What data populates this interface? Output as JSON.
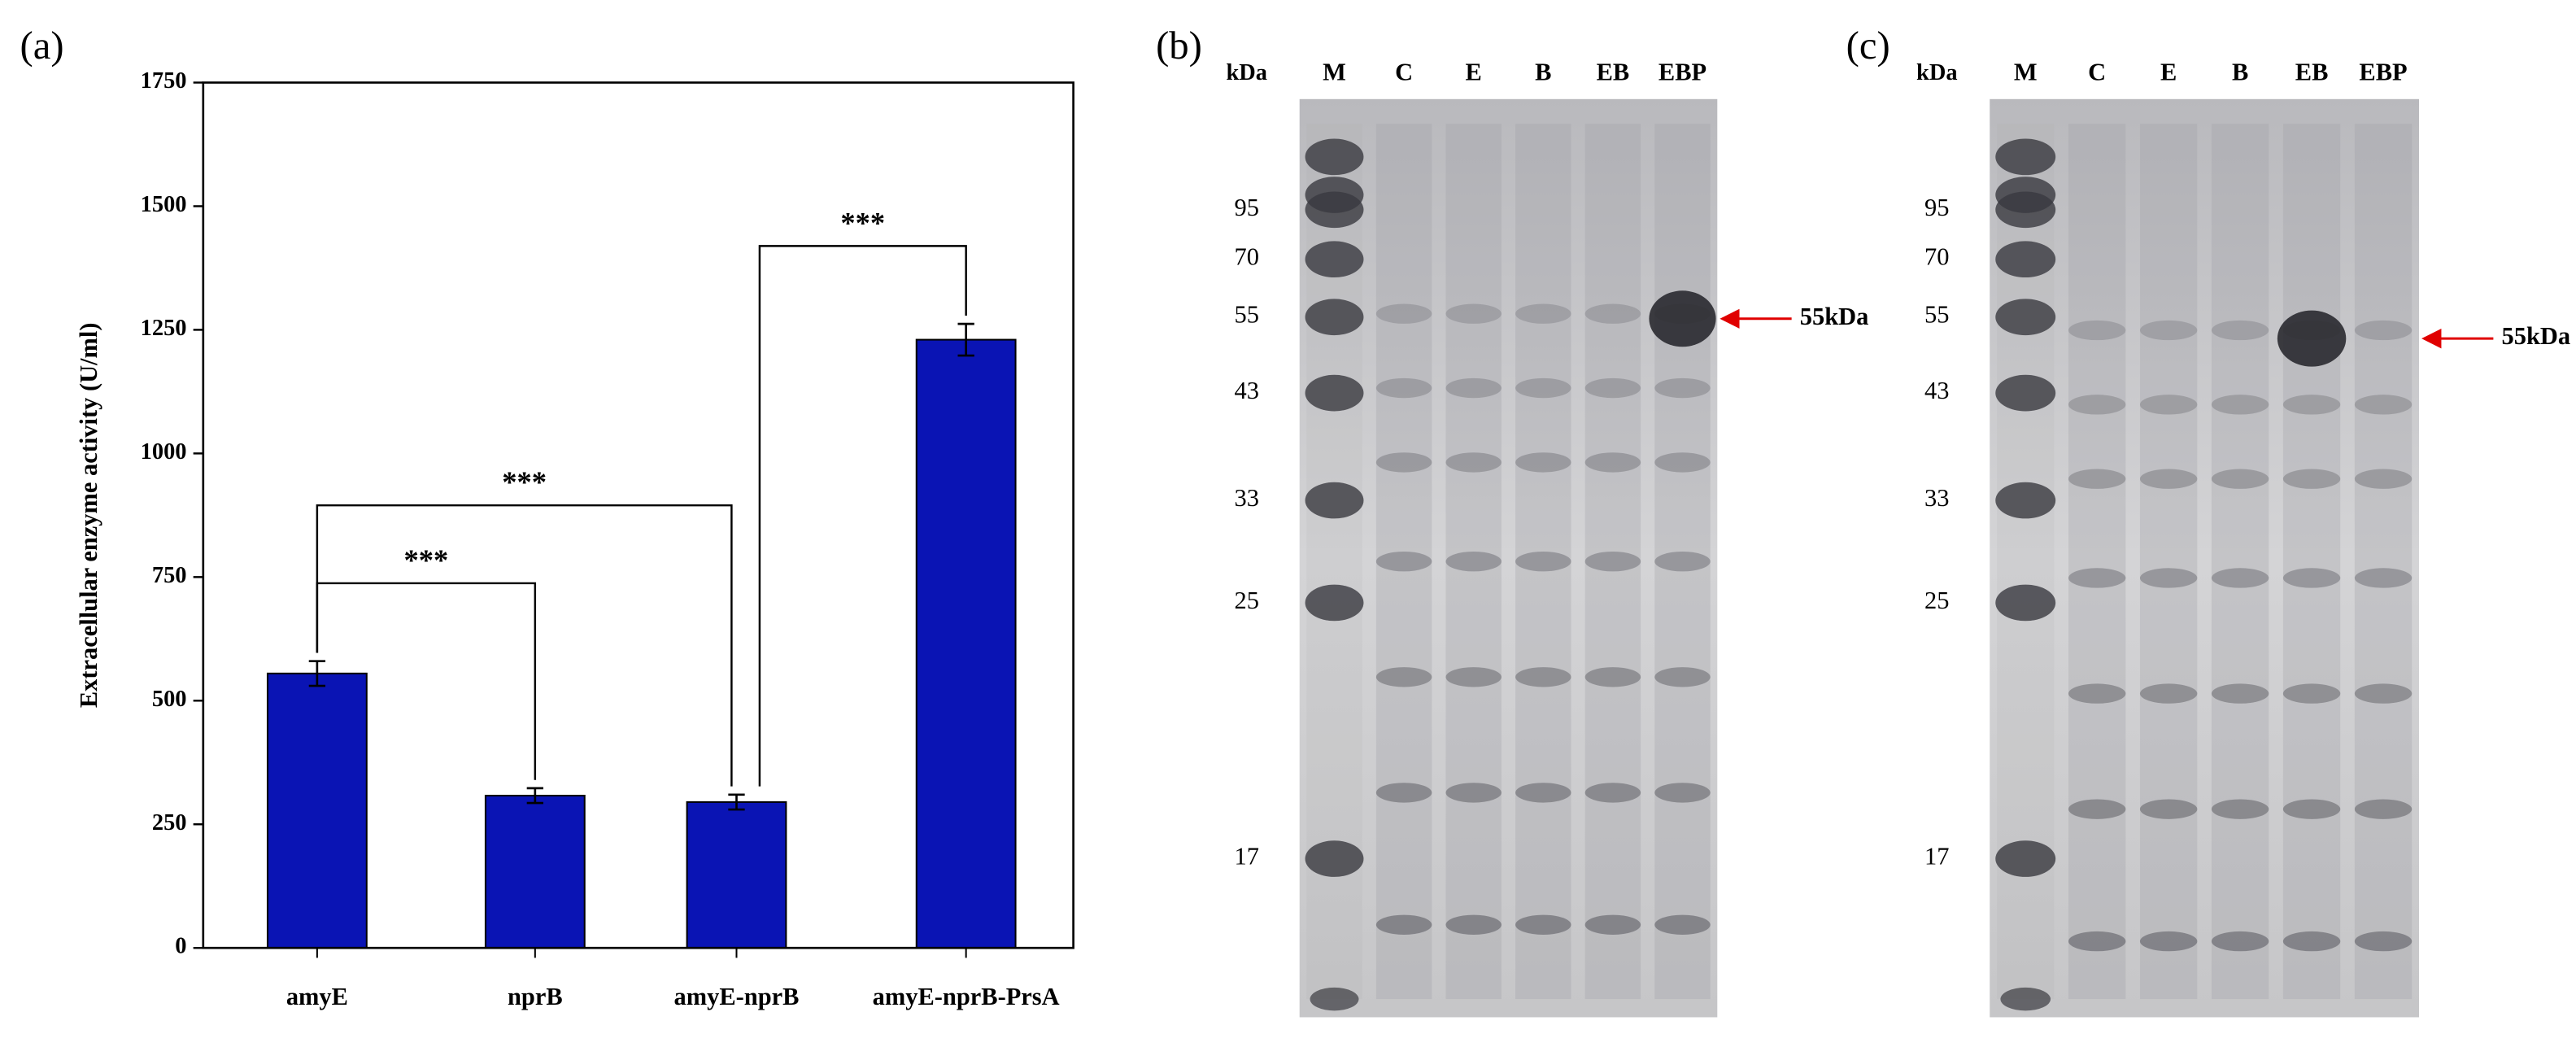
{
  "chart_data": {
    "type": "bar",
    "panel_label": "(a)",
    "y_label": "Extracellular enzyme activity (U/ml)",
    "categories": [
      "amyE",
      "nprB",
      "amyE-nprB",
      "amyE-nprB-PrsA"
    ],
    "values": [
      555,
      308,
      295,
      1230
    ],
    "errors": [
      25,
      15,
      15,
      32
    ],
    "color": "#0a14b4",
    "ylim": [
      0,
      1750
    ],
    "yticks": [
      0,
      250,
      500,
      750,
      1000,
      1250,
      1500,
      1750
    ],
    "annotations": [
      {
        "text": "***",
        "from": "amyE",
        "to": "nprB"
      },
      {
        "text": "***",
        "from": "amyE",
        "to": "amyE-nprB"
      },
      {
        "text": "***",
        "from": "amyE-nprB",
        "to": "amyE-nprB-PrsA"
      }
    ]
  },
  "gels": [
    {
      "panel_label": "(b)",
      "unit": "kDa",
      "lanes": [
        "M",
        "C",
        "E",
        "B",
        "EB",
        "EBP"
      ],
      "markers": [
        "95",
        "70",
        "55",
        "43",
        "33",
        "25",
        "17"
      ],
      "arrow_label": "55kDa"
    },
    {
      "panel_label": "(c)",
      "unit": "kDa",
      "lanes": [
        "M",
        "C",
        "E",
        "B",
        "EB",
        "EBP"
      ],
      "markers": [
        "95",
        "70",
        "55",
        "43",
        "33",
        "25",
        "17"
      ],
      "arrow_label": "55kDa"
    }
  ]
}
